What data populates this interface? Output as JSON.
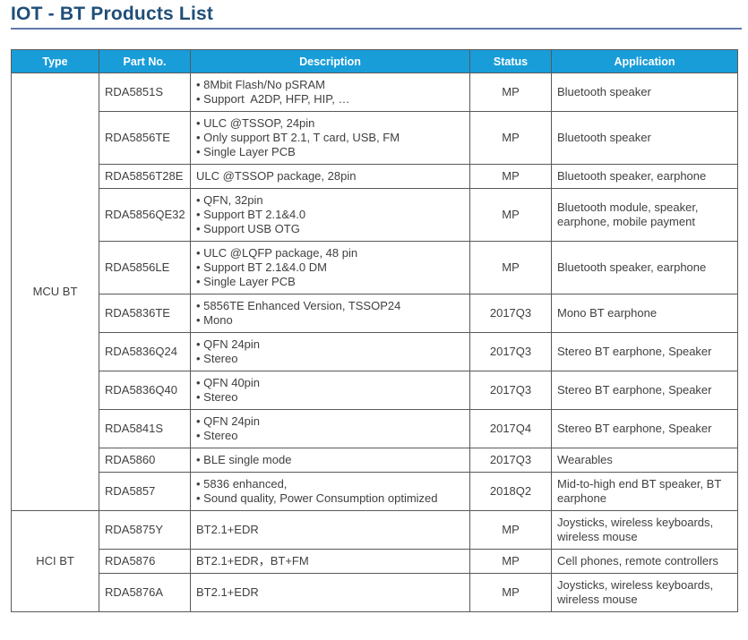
{
  "page_title": "IOT - BT Products List",
  "colors": {
    "title_text": "#1F4E79",
    "title_underline": "#6079A8",
    "header_background": "#189DD9",
    "header_text": "#FFFFFF",
    "table_border": "#595959",
    "cell_text": "#3F3F3F"
  },
  "table": {
    "headers": [
      "Type",
      "Part No.",
      "Description",
      "Status",
      "Application"
    ],
    "groups": [
      {
        "type": "MCU BT",
        "rows": [
          {
            "part_no": "RDA5851S",
            "description": [
              "• 8Mbit Flash/No pSRAM",
              "• Support  A2DP, HFP, HIP, …"
            ],
            "status": "MP",
            "application": "Bluetooth speaker"
          },
          {
            "part_no": "RDA5856TE",
            "description": [
              "• ULC @TSSOP, 24pin",
              "• Only support BT 2.1, T card, USB, FM",
              "• Single Layer PCB"
            ],
            "status": "MP",
            "application": "Bluetooth speaker"
          },
          {
            "part_no": "RDA5856T28E",
            "description": [
              "ULC @TSSOP package, 28pin"
            ],
            "status": "MP",
            "application": "Bluetooth speaker, earphone"
          },
          {
            "part_no": "RDA5856QE32",
            "description": [
              "• QFN, 32pin",
              "• Support BT 2.1&4.0",
              "• Support USB OTG"
            ],
            "status": "MP",
            "application": "Bluetooth module, speaker, earphone, mobile payment"
          },
          {
            "part_no": "RDA5856LE",
            "description": [
              "• ULC @LQFP package, 48 pin",
              "• Support BT 2.1&4.0 DM",
              "• Single Layer PCB"
            ],
            "status": "MP",
            "application": "Bluetooth speaker, earphone"
          },
          {
            "part_no": "RDA5836TE",
            "description": [
              "• 5856TE Enhanced Version, TSSOP24",
              "• Mono"
            ],
            "status": "2017Q3",
            "application": "Mono BT earphone"
          },
          {
            "part_no": "RDA5836Q24",
            "description": [
              "• QFN 24pin",
              "• Stereo"
            ],
            "status": "2017Q3",
            "application": "Stereo BT earphone, Speaker"
          },
          {
            "part_no": "RDA5836Q40",
            "description": [
              "• QFN 40pin",
              "• Stereo"
            ],
            "status": "2017Q3",
            "application": "Stereo BT earphone, Speaker"
          },
          {
            "part_no": "RDA5841S",
            "description": [
              "• QFN 24pin",
              "• Stereo"
            ],
            "status": "2017Q4",
            "application": "Stereo BT earphone, Speaker"
          },
          {
            "part_no": "RDA5860",
            "description": [
              "• BLE single mode"
            ],
            "status": "2017Q3",
            "application": "Wearables"
          },
          {
            "part_no": "RDA5857",
            "description": [
              "• 5836 enhanced,",
              "• Sound quality, Power Consumption optimized"
            ],
            "status": "2018Q2",
            "application": "Mid-to-high end BT speaker, BT earphone"
          }
        ]
      },
      {
        "type": "HCI BT",
        "rows": [
          {
            "part_no": "RDA5875Y",
            "description": [
              "BT2.1+EDR"
            ],
            "status": "MP",
            "application": "Joysticks, wireless keyboards, wireless mouse"
          },
          {
            "part_no": "RDA5876",
            "description": [
              "BT2.1+EDR，BT+FM"
            ],
            "status": "MP",
            "application": "Cell phones, remote controllers"
          },
          {
            "part_no": "RDA5876A",
            "description": [
              "BT2.1+EDR"
            ],
            "status": "MP",
            "application": "Joysticks, wireless keyboards, wireless mouse"
          }
        ]
      }
    ]
  }
}
